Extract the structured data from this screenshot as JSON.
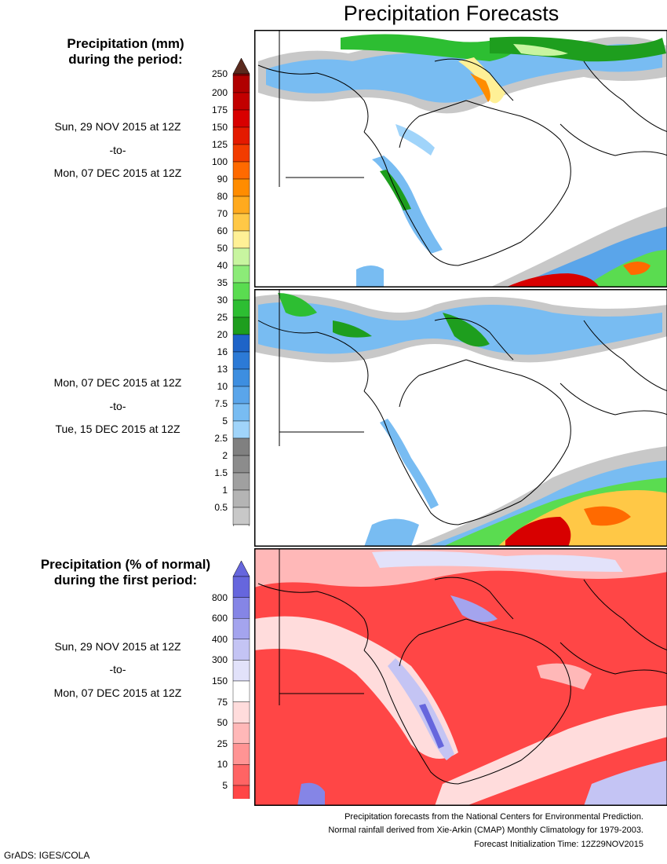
{
  "title": "Precipitation Forecasts",
  "legend_mm": {
    "heading_line1": "Precipitation (mm)",
    "heading_line2": "during the period:",
    "ticks": [
      "250",
      "200",
      "175",
      "150",
      "125",
      "100",
      "90",
      "80",
      "70",
      "60",
      "50",
      "40",
      "35",
      "30",
      "25",
      "20",
      "16",
      "13",
      "10",
      "7.5",
      "5",
      "2.5",
      "2",
      "1.5",
      "1",
      "0.5"
    ],
    "colors": [
      "#b00000",
      "#c20000",
      "#d80000",
      "#e41a00",
      "#f23c00",
      "#ff6a00",
      "#ff8c00",
      "#ffaa1e",
      "#ffc846",
      "#fff096",
      "#c8f5a0",
      "#8ceb78",
      "#5adc50",
      "#2dbe32",
      "#1e9e1e",
      "#1e64c8",
      "#2c7ad6",
      "#3d8ee0",
      "#5aa5ea",
      "#78bcf2",
      "#a0d4fa",
      "#808080",
      "#8c8c8c",
      "#a0a0a0",
      "#b4b4b4",
      "#c8c8c8"
    ],
    "top_arrow_color": "#5a2a1e"
  },
  "period1": {
    "start": "Sun, 29 NOV 2015 at 12Z",
    "to": "-to-",
    "end": "Mon, 07 DEC 2015 at 12Z"
  },
  "period2": {
    "start": "Mon, 07 DEC 2015 at 12Z",
    "to": "-to-",
    "end": "Tue, 15 DEC 2015 at 12Z"
  },
  "legend_pct": {
    "heading_line1": "Precipitation (% of normal)",
    "heading_line2": "during the first period:",
    "ticks": [
      "800",
      "600",
      "400",
      "300",
      "150",
      "75",
      "50",
      "25",
      "10",
      "5"
    ],
    "colors": [
      "#6666dd",
      "#8585e6",
      "#a4a4ee",
      "#c4c4f4",
      "#e2e2fa",
      "#ffffff",
      "#ffdcdc",
      "#ffb8b8",
      "#ff9494",
      "#ff6464",
      "#ff4646"
    ]
  },
  "period3": {
    "start": "Sun, 29 NOV 2015 at 12Z",
    "to": "-to-",
    "end": "Mon, 07 DEC 2015 at 12Z"
  },
  "footer": {
    "line1": "Precipitation forecasts from the National Centers for Environmental Prediction.",
    "line2": "Normal rainfall derived from Xie-Arkin (CMAP) Monthly Climatology for 1979-2003.",
    "line3": "Forecast Initialization Time: 12Z29NOV2015"
  },
  "credit": "GrADS: IGES/COLA"
}
